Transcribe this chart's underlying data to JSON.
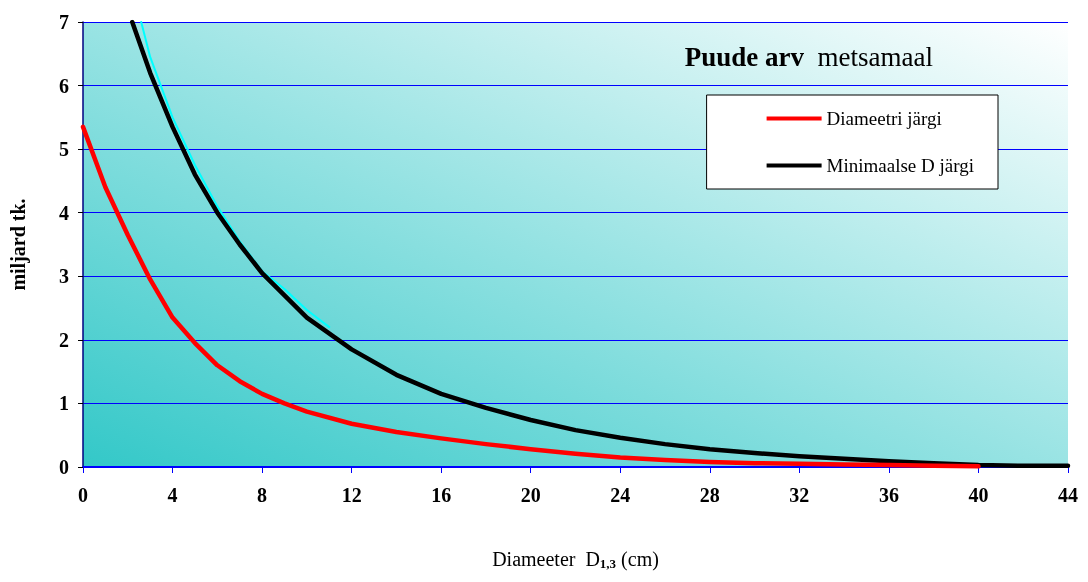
{
  "chart_data": {
    "type": "line",
    "title": "Puude arv  metsamaal",
    "xlabel": "Diameeter  D$_{1,3}$ (cm)",
    "ylabel": "miljard tk.",
    "xlim": [
      0,
      44
    ],
    "xticks": [
      0,
      4,
      8,
      12,
      16,
      20,
      24,
      28,
      32,
      36,
      40,
      44
    ],
    "ylim": [
      0,
      7
    ],
    "yticks": [
      0,
      1,
      2,
      3,
      4,
      5,
      6,
      7
    ],
    "grid": "y",
    "legend": "top right",
    "marker": "none",
    "line_style": "solid",
    "series": [
      {
        "name": "Diameetri järgi",
        "color": "#ff0000",
        "x": [
          0,
          1,
          2,
          3,
          4,
          5,
          6,
          7,
          8,
          9,
          10,
          12,
          14,
          16,
          18,
          20,
          22,
          24,
          26,
          28,
          30,
          32,
          34,
          36,
          38,
          40
        ],
        "values": [
          5.35,
          4.4,
          3.65,
          2.95,
          2.35,
          1.95,
          1.6,
          1.35,
          1.15,
          1.0,
          0.87,
          0.68,
          0.55,
          0.45,
          0.36,
          0.28,
          0.21,
          0.15,
          0.11,
          0.08,
          0.06,
          0.05,
          0.04,
          0.03,
          0.02,
          0.01
        ]
      },
      {
        "name": "Minimaalse D järgi",
        "color": "#000000",
        "x": [
          2.2,
          3,
          4,
          5,
          6,
          7,
          8,
          10,
          12,
          14,
          16,
          18,
          20,
          22,
          24,
          26,
          28,
          30,
          32,
          34,
          36,
          38,
          40,
          42,
          44
        ],
        "values": [
          7.0,
          6.2,
          5.35,
          4.6,
          4.0,
          3.5,
          3.05,
          2.35,
          1.85,
          1.45,
          1.15,
          0.93,
          0.74,
          0.58,
          0.46,
          0.36,
          0.28,
          0.22,
          0.17,
          0.13,
          0.09,
          0.06,
          0.03,
          0.02,
          0.02
        ]
      },
      {
        "color": "#00ffff",
        "x": [
          2.6,
          3,
          4,
          5,
          6,
          7,
          8,
          9,
          10,
          11
        ],
        "values": [
          7.0,
          6.45,
          5.5,
          4.75,
          4.1,
          3.55,
          3.08,
          2.8,
          2.47,
          2.2
        ]
      }
    ]
  }
}
